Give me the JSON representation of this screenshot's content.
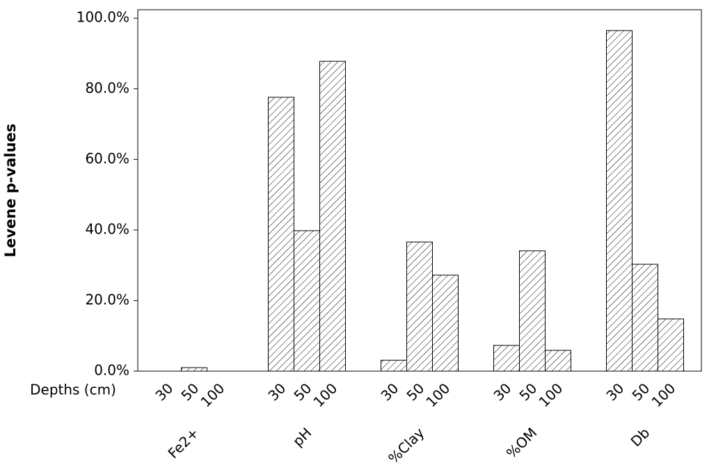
{
  "chart_data": {
    "type": "bar",
    "y_label": "Levene p-values",
    "x_sublabel_title": "Depths (cm)",
    "categories": [
      "Fe2+",
      "pH",
      "%Clay",
      "%OM",
      "Db"
    ],
    "series": [
      {
        "name": "30",
        "color": "#000000",
        "values": [
          0,
          77.6,
          3.1,
          7.3,
          96.5
        ]
      },
      {
        "name": "50",
        "color": "#000000",
        "values": [
          1.0,
          39.8,
          36.6,
          34.1,
          30.3
        ]
      },
      {
        "name": "100",
        "color": "#000000",
        "values": [
          0,
          87.8,
          27.2,
          5.9,
          14.8
        ]
      }
    ],
    "ylim": [
      0,
      102.4
    ],
    "yticks": [
      {
        "value": 0,
        "label": "0.0%"
      },
      {
        "value": 20,
        "label": "20.0%"
      },
      {
        "value": 40,
        "label": "40.0%"
      },
      {
        "value": 60,
        "label": "60.0%"
      },
      {
        "value": 80,
        "label": "80.0%"
      },
      {
        "value": 100,
        "label": "100.0%"
      }
    ]
  }
}
